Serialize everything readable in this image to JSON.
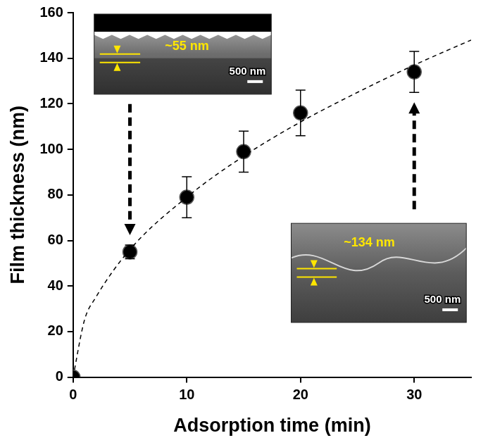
{
  "chart_data": {
    "type": "scatter",
    "x_label": "Adsorption time (min)",
    "y_label": "Film thickness (nm)",
    "x": [
      0,
      5,
      10,
      15,
      20,
      30
    ],
    "values": [
      0,
      55,
      79,
      99,
      116,
      134
    ],
    "errors": [
      0,
      3,
      9,
      9,
      10,
      9
    ],
    "color": "#000000",
    "marker": "circle",
    "fit": {
      "x": [
        0,
        1,
        2,
        5,
        10,
        15,
        20,
        25,
        30,
        35
      ],
      "values": [
        0,
        25,
        35,
        56,
        79,
        97,
        112,
        125,
        137,
        148
      ],
      "line_style": "dashed",
      "color": "#000000"
    },
    "xlim": [
      0,
      35
    ],
    "xticks": [
      0,
      10,
      20,
      30
    ],
    "ylim": [
      0,
      160
    ],
    "yticks": [
      0,
      20,
      40,
      60,
      80,
      100,
      120,
      140,
      160
    ],
    "grid": false,
    "insets": [
      {
        "thickness_label": "~55 nm",
        "scale_label": "500 nm",
        "points_to_x": 5
      },
      {
        "thickness_label": "~134 nm",
        "scale_label": "500 nm",
        "points_to_x": 30
      }
    ]
  }
}
